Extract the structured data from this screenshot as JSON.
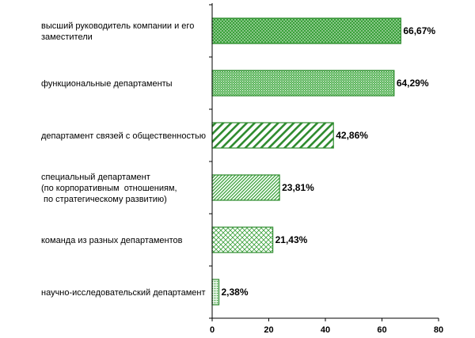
{
  "chart_data": {
    "type": "bar",
    "orientation": "horizontal",
    "categories": [
      [
        "высший руководитель компании и его",
        "заместители"
      ],
      [
        "функциональные департаменты"
      ],
      [
        "департамент связей с общественностью"
      ],
      [
        "специальный департамент",
        "(по корпоративным  отношениям,",
        " по стратегическому развитию)"
      ],
      [
        "команда из разных департаментов"
      ],
      [
        "научно-исследовательский департамент"
      ]
    ],
    "values": [
      66.67,
      64.29,
      42.86,
      23.81,
      21.43,
      2.38
    ],
    "value_labels": [
      "66,67%",
      "64,29%",
      "42,86%",
      "23,81%",
      "21,43%",
      "2,38%"
    ],
    "patterns": [
      "dots-dense",
      "checker-fine",
      "diagonal-wide",
      "diagonal-fine",
      "crosshatch",
      "dots-light"
    ],
    "xlim": [
      0,
      80
    ],
    "xticks": [
      0,
      20,
      40,
      60,
      80
    ],
    "grid": false,
    "colors": {
      "bar_border": "#2e8b2e",
      "bar_fill": "#3aa13a",
      "bar_light": "#ffffff"
    }
  }
}
